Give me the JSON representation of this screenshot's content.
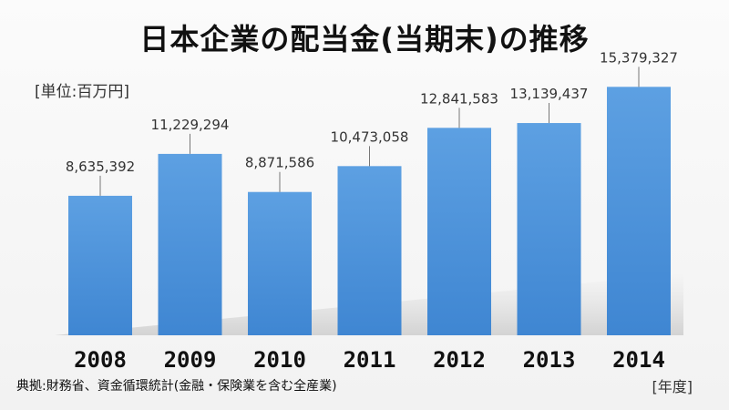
{
  "chart_data": {
    "type": "bar",
    "title": "日本企業の配当金(当期末)の推移",
    "unit_label": "[単位:百万円]",
    "xlabel": "[年度]",
    "source": "典拠:財務省、資金循環統計(金融・保険業を含む全産業)",
    "categories": [
      "2008",
      "2009",
      "2010",
      "2011",
      "2012",
      "2013",
      "2014"
    ],
    "values": [
      8635392,
      11229294,
      8871586,
      10473058,
      12841583,
      13139437,
      15379327
    ],
    "value_labels": [
      "8,635,392",
      "11,229,294",
      "8,871,586",
      "10,473,058",
      "12,841,583",
      "13,139,437",
      "15,379,327"
    ],
    "ylim": [
      0,
      18500000
    ],
    "grid": false,
    "legend": "none",
    "bar_color": "#4a8fd6",
    "bar_color_light": "#5fa0e0"
  }
}
